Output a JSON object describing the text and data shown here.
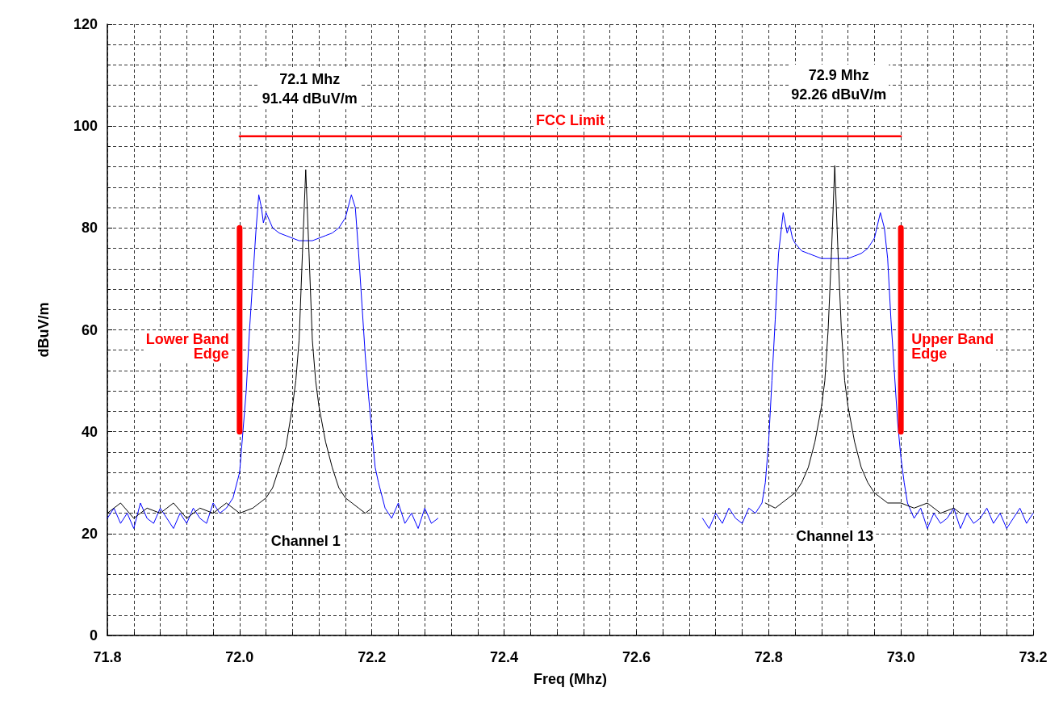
{
  "chart_data": {
    "type": "line",
    "xlabel": "Freq (Mhz)",
    "ylabel": "dBuV/m",
    "xlim": [
      71.8,
      73.2
    ],
    "xticks": [
      71.8,
      {
        "value": 72,
        "label": "72.0"
      },
      72.2,
      72.4,
      72.6,
      72.8,
      {
        "value": 73,
        "label": "73.0"
      },
      73.2
    ],
    "ylim": [
      0,
      120
    ],
    "yticks": [
      0,
      20,
      40,
      60,
      80,
      100,
      120
    ],
    "grid": true,
    "legend": false,
    "marker": "none",
    "series": [
      {
        "color": "#0000ff",
        "x": [
          71.8,
          71.81,
          71.82,
          71.83,
          71.84,
          71.85,
          71.86,
          71.87,
          71.88,
          71.89,
          71.9,
          71.91,
          71.92,
          71.93,
          71.94,
          71.95,
          71.96,
          71.97,
          71.98,
          71.99,
          72.0,
          72.005,
          72.01,
          72.015,
          72.02,
          72.025,
          72.029,
          72.033,
          72.036,
          72.04,
          72.05,
          72.06,
          72.07,
          72.08,
          72.09,
          72.1,
          72.11,
          72.12,
          72.13,
          72.14,
          72.15,
          72.16,
          72.169,
          72.175,
          72.18,
          72.185,
          72.19,
          72.195,
          72.2,
          72.205,
          72.21,
          72.22,
          72.23,
          72.24,
          72.25,
          72.26,
          72.27,
          72.28,
          72.29,
          72.3
        ],
        "values": [
          23,
          25,
          22,
          24,
          21,
          26,
          23,
          22,
          25,
          23,
          21,
          24,
          22,
          25,
          23,
          22,
          26,
          24,
          25,
          27,
          32,
          40,
          48,
          60,
          70,
          80,
          86.5,
          84,
          81,
          83,
          80,
          79,
          78.5,
          78,
          77.5,
          77.5,
          77.5,
          78,
          78.5,
          79,
          80,
          82,
          86.5,
          84,
          75,
          65,
          55,
          47,
          40,
          33,
          30,
          25,
          23,
          26,
          22,
          24,
          21,
          25,
          22,
          23
        ]
      },
      {
        "name": "Channel 1",
        "color": "#000000",
        "x": [
          71.8,
          71.82,
          71.84,
          71.86,
          71.88,
          71.9,
          71.92,
          71.94,
          71.96,
          71.98,
          72.0,
          72.02,
          72.03,
          72.04,
          72.05,
          72.06,
          72.07,
          72.08,
          72.085,
          72.09,
          72.095,
          72.1,
          72.105,
          72.11,
          72.115,
          72.12,
          72.13,
          72.14,
          72.15,
          72.16,
          72.17,
          72.18,
          72.19,
          72.2
        ],
        "values": [
          24,
          26,
          23,
          25,
          24,
          26,
          23,
          25,
          24,
          26,
          24,
          25,
          26,
          27,
          29,
          33,
          37,
          45,
          50,
          58,
          75,
          91.44,
          75,
          58,
          50,
          45,
          38,
          33,
          29,
          27,
          26,
          25,
          24,
          25
        ]
      },
      {
        "color": "#0000ff",
        "x": [
          72.7,
          72.71,
          72.72,
          72.73,
          72.74,
          72.75,
          72.76,
          72.77,
          72.78,
          72.79,
          72.795,
          72.8,
          72.805,
          72.81,
          72.815,
          72.822,
          72.828,
          72.832,
          72.836,
          72.84,
          72.85,
          72.86,
          72.87,
          72.88,
          72.89,
          72.9,
          72.91,
          72.92,
          72.93,
          72.94,
          72.95,
          72.96,
          72.969,
          72.975,
          72.98,
          72.985,
          72.99,
          72.995,
          73.0,
          73.005,
          73.01,
          73.02,
          73.03,
          73.04,
          73.05,
          73.06,
          73.07,
          73.08,
          73.09,
          73.1,
          73.11,
          73.12,
          73.13,
          73.14,
          73.15,
          73.16,
          73.17,
          73.18,
          73.19,
          73.2
        ],
        "values": [
          23,
          21,
          24,
          22,
          25,
          23,
          22,
          25,
          24,
          26,
          30,
          38,
          50,
          62,
          75,
          83,
          79,
          80.5,
          78,
          77,
          75.5,
          75,
          74.5,
          74,
          74,
          74,
          74,
          74,
          74.5,
          75,
          76,
          78,
          83,
          80,
          74,
          62,
          52,
          42,
          35,
          30,
          26,
          23,
          25,
          21,
          24,
          22,
          23,
          25,
          21,
          24,
          22,
          23,
          25,
          22,
          24,
          21,
          23,
          25,
          22,
          24
        ]
      },
      {
        "name": "Channel 13",
        "color": "#000000",
        "x": [
          72.795,
          72.81,
          72.82,
          72.83,
          72.84,
          72.85,
          72.86,
          72.87,
          72.88,
          72.885,
          72.89,
          72.895,
          72.9,
          72.905,
          72.91,
          72.915,
          72.92,
          72.93,
          72.94,
          72.95,
          72.96,
          72.97,
          72.98,
          73.0,
          73.02,
          73.04,
          73.06,
          73.08,
          73.09
        ],
        "values": [
          26,
          25,
          26,
          27,
          28,
          30,
          33,
          38,
          45,
          50,
          60,
          75,
          92.26,
          75,
          60,
          50,
          45,
          38,
          33,
          30,
          28,
          27,
          26,
          26,
          25,
          26,
          24,
          25,
          24
        ]
      },
      {
        "name": "FCC Limit",
        "color": "#ff0000",
        "x": [
          72.0,
          73.0
        ],
        "values": [
          98,
          98
        ]
      },
      {
        "name": "Lower Band Edge",
        "color": "#ff0000",
        "x": [
          72.0,
          72.0
        ],
        "values": [
          40,
          80
        ]
      },
      {
        "name": "Upper Band Edge",
        "color": "#ff0000",
        "x": [
          73.0,
          73.0
        ],
        "values": [
          40,
          80
        ]
      }
    ],
    "annotations": [
      "72.1 Mhz\n91.44 dBuV/m",
      "72.9 Mhz\n92.26 dBuV/m"
    ]
  }
}
